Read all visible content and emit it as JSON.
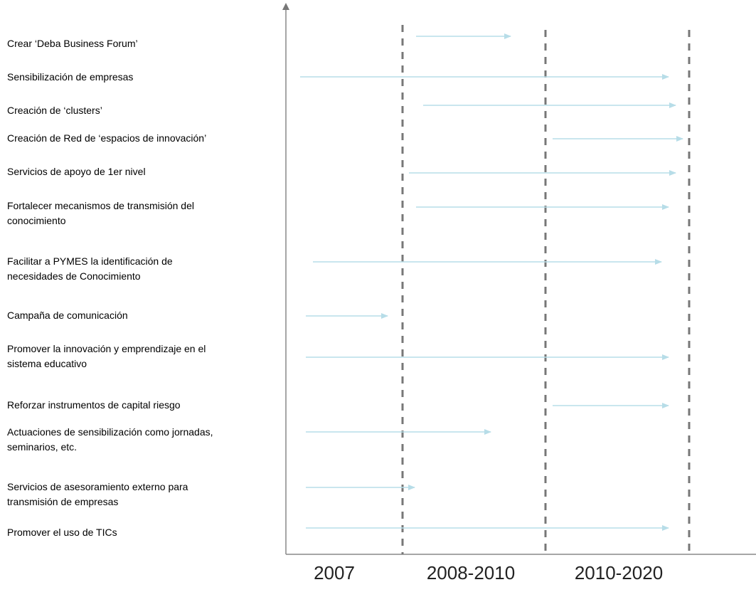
{
  "tasks": [
    [
      "Crear ‘Deba Business Forum’"
    ],
    [
      "Sensibilización de empresas"
    ],
    [
      "Creación de ‘clusters’"
    ],
    [
      "Creación de Red de ‘espacios de innovación’"
    ],
    [
      "Servicios de apoyo de 1er nivel"
    ],
    [
      "Fortalecer mecanismos de transmisión del",
      "conocimiento"
    ],
    [
      "Facilitar a PYMES la identificación de",
      "necesidades de Conocimiento"
    ],
    [
      "Campaña de comunicación"
    ],
    [
      "Promover la innovación y emprendizaje en el",
      "sistema educativo"
    ],
    [
      "Reforzar instrumentos de capital riesgo"
    ],
    [
      "Actuaciones de sensibilización como jornadas,",
      "seminarios, etc."
    ],
    [
      "Servicios de asesoramiento externo para",
      "transmisión de empresas"
    ],
    [
      "Promover el uso de TICs"
    ]
  ],
  "periods": [
    "2007",
    "2008-2010",
    "2010-2020"
  ]
}
